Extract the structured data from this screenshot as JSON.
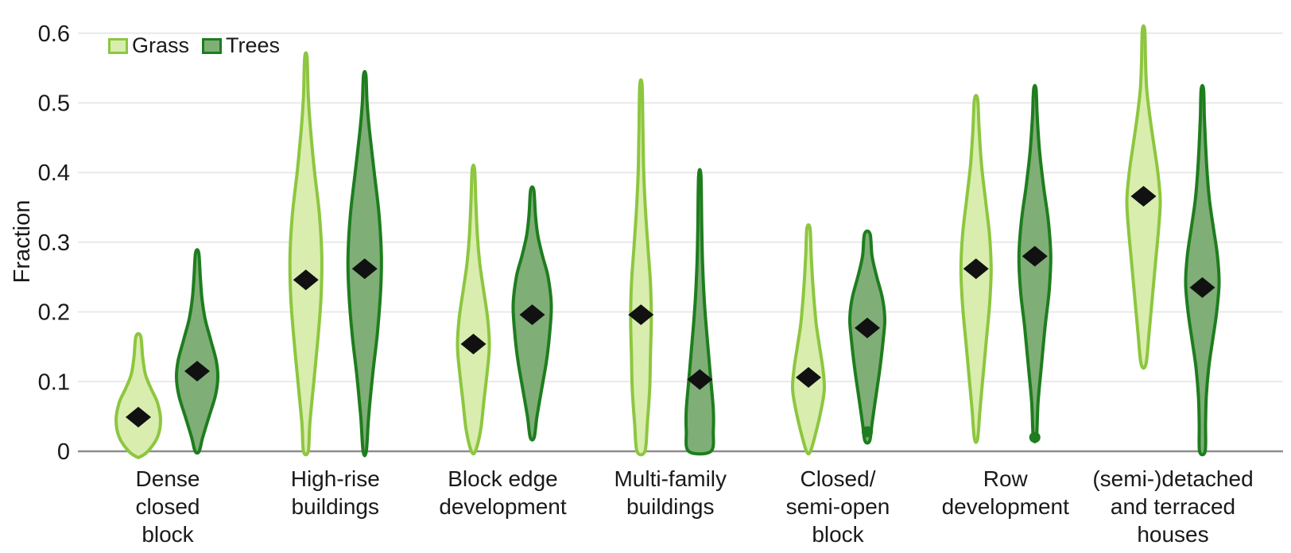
{
  "chart_data": {
    "type": "violin",
    "title": "",
    "ylabel": "Fraction",
    "xlabel": "",
    "ylim": [
      0,
      0.62
    ],
    "yticks": [
      0,
      0.1,
      0.2,
      0.3,
      0.4,
      0.5,
      0.6
    ],
    "ytick_labels": [
      "0",
      "0.1",
      "0.2",
      "0.3",
      "0.4",
      "0.5",
      "0.6"
    ],
    "grid": true,
    "legend_position": "top-left",
    "grid_color": "#e9e9e9",
    "axis_color": "#8c8c8c",
    "text_color": "#1a1a1a",
    "marker": {
      "shape": "diamond",
      "color": "#111111"
    },
    "categories": [
      "Dense\nclosed\nblock",
      "High-rise\nbuildings",
      "Block edge\ndevelopment",
      "Multi-family\nbuildings",
      "Closed/\nsemi-open\nblock",
      "Row\ndevelopment",
      "(semi-)detached\nand terraced\nhouses"
    ],
    "series": [
      {
        "name": "Grass",
        "color_fill": "#d9edae",
        "color_stroke": "#8dc63f",
        "violins": [
          {
            "min": 0,
            "max": 0.165,
            "median": 0.049,
            "outlier": null,
            "profile": [
              [
                -0.008,
                2
              ],
              [
                0,
                12
              ],
              [
                0.02,
                24
              ],
              [
                0.045,
                28
              ],
              [
                0.07,
                24
              ],
              [
                0.09,
                16
              ],
              [
                0.11,
                9
              ],
              [
                0.135,
                5.5
              ],
              [
                0.165,
                3
              ]
            ]
          },
          {
            "min": 0,
            "max": 0.565,
            "median": 0.246,
            "outlier": null,
            "profile": [
              [
                0,
                3
              ],
              [
                0.04,
                5
              ],
              [
                0.1,
                10
              ],
              [
                0.16,
                15
              ],
              [
                0.22,
                19
              ],
              [
                0.28,
                20
              ],
              [
                0.34,
                17
              ],
              [
                0.4,
                11
              ],
              [
                0.46,
                6
              ],
              [
                0.51,
                3
              ],
              [
                0.565,
                1.5
              ]
            ]
          },
          {
            "min": 0,
            "max": 0.405,
            "median": 0.154,
            "outlier": null,
            "profile": [
              [
                0,
                2.5
              ],
              [
                0.03,
                9
              ],
              [
                0.07,
                13
              ],
              [
                0.11,
                17
              ],
              [
                0.15,
                20
              ],
              [
                0.19,
                18
              ],
              [
                0.23,
                13
              ],
              [
                0.27,
                8
              ],
              [
                0.31,
                5
              ],
              [
                0.36,
                3
              ],
              [
                0.405,
                1.5
              ]
            ]
          },
          {
            "min": 0,
            "max": 0.525,
            "median": 0.196,
            "outlier": null,
            "profile": [
              [
                0,
                5
              ],
              [
                0.04,
                8
              ],
              [
                0.09,
                11
              ],
              [
                0.14,
                12
              ],
              [
                0.19,
                13
              ],
              [
                0.24,
                12
              ],
              [
                0.29,
                9
              ],
              [
                0.34,
                6
              ],
              [
                0.4,
                3.5
              ],
              [
                0.46,
                2.5
              ],
              [
                0.525,
                1.5
              ]
            ]
          },
          {
            "min": 0,
            "max": 0.32,
            "median": 0.106,
            "outlier": null,
            "profile": [
              [
                0,
                2.5
              ],
              [
                0.03,
                10
              ],
              [
                0.06,
                16
              ],
              [
                0.09,
                20
              ],
              [
                0.12,
                18
              ],
              [
                0.15,
                14
              ],
              [
                0.18,
                10
              ],
              [
                0.21,
                7.5
              ],
              [
                0.24,
                5.5
              ],
              [
                0.28,
                3.5
              ],
              [
                0.32,
                2
              ]
            ]
          },
          {
            "min": 0.018,
            "max": 0.505,
            "median": 0.262,
            "outlier": null,
            "profile": [
              [
                0.018,
                2
              ],
              [
                0.06,
                5
              ],
              [
                0.11,
                9
              ],
              [
                0.16,
                13
              ],
              [
                0.21,
                17
              ],
              [
                0.26,
                19
              ],
              [
                0.31,
                17
              ],
              [
                0.36,
                12
              ],
              [
                0.41,
                7
              ],
              [
                0.46,
                4
              ],
              [
                0.505,
                2
              ]
            ]
          },
          {
            "min": 0.125,
            "max": 0.605,
            "median": 0.366,
            "outlier": null,
            "profile": [
              [
                0.125,
                3
              ],
              [
                0.17,
                7
              ],
              [
                0.22,
                11
              ],
              [
                0.27,
                15
              ],
              [
                0.32,
                19
              ],
              [
                0.36,
                21
              ],
              [
                0.4,
                18
              ],
              [
                0.44,
                13
              ],
              [
                0.48,
                8
              ],
              [
                0.52,
                4
              ],
              [
                0.56,
                2.5
              ],
              [
                0.605,
                1.5
              ]
            ]
          }
        ]
      },
      {
        "name": "Trees",
        "color_fill": "#7fae77",
        "color_stroke": "#1e7d1e",
        "violins": [
          {
            "min": 0,
            "max": 0.285,
            "median": 0.115,
            "outlier": null,
            "profile": [
              [
                0,
                2.5
              ],
              [
                0.02,
                7
              ],
              [
                0.05,
                15
              ],
              [
                0.08,
                23
              ],
              [
                0.105,
                26
              ],
              [
                0.13,
                24
              ],
              [
                0.16,
                17
              ],
              [
                0.19,
                10
              ],
              [
                0.22,
                6
              ],
              [
                0.25,
                4
              ],
              [
                0.285,
                2
              ]
            ]
          },
          {
            "min": 0,
            "max": 0.54,
            "median": 0.262,
            "outlier": null,
            "profile": [
              [
                0,
                2
              ],
              [
                0.05,
                5
              ],
              [
                0.11,
                10
              ],
              [
                0.17,
                16
              ],
              [
                0.23,
                20
              ],
              [
                0.28,
                21
              ],
              [
                0.34,
                18
              ],
              [
                0.4,
                12
              ],
              [
                0.46,
                6
              ],
              [
                0.5,
                3
              ],
              [
                0.54,
                1.5
              ]
            ]
          },
          {
            "min": 0.02,
            "max": 0.375,
            "median": 0.196,
            "outlier": null,
            "profile": [
              [
                0.02,
                2.5
              ],
              [
                0.05,
                6
              ],
              [
                0.09,
                12
              ],
              [
                0.13,
                18
              ],
              [
                0.17,
                22
              ],
              [
                0.21,
                24
              ],
              [
                0.25,
                20
              ],
              [
                0.28,
                13
              ],
              [
                0.31,
                7
              ],
              [
                0.34,
                4
              ],
              [
                0.375,
                2
              ]
            ]
          },
          {
            "min": 0,
            "max": 0.395,
            "median": 0.103,
            "outlier": null,
            "profile": [
              [
                0,
                14
              ],
              [
                0.03,
                17
              ],
              [
                0.06,
                17
              ],
              [
                0.1,
                14
              ],
              [
                0.14,
                11
              ],
              [
                0.18,
                8
              ],
              [
                0.22,
                5.5
              ],
              [
                0.27,
                3.5
              ],
              [
                0.32,
                2.5
              ],
              [
                0.395,
                1.5
              ]
            ]
          },
          {
            "min": 0.015,
            "max": 0.312,
            "median": 0.177,
            "outlier": 0.028,
            "profile": [
              [
                0.015,
                3
              ],
              [
                0.04,
                6
              ],
              [
                0.08,
                11
              ],
              [
                0.12,
                16
              ],
              [
                0.16,
                20
              ],
              [
                0.19,
                22
              ],
              [
                0.22,
                19
              ],
              [
                0.25,
                12
              ],
              [
                0.28,
                6
              ],
              [
                0.312,
                3.5
              ]
            ]
          },
          {
            "min": 0.02,
            "max": 0.52,
            "median": 0.28,
            "outlier": 0.02,
            "profile": [
              [
                0.02,
                2
              ],
              [
                0.07,
                4
              ],
              [
                0.12,
                8
              ],
              [
                0.18,
                13
              ],
              [
                0.23,
                18
              ],
              [
                0.28,
                20
              ],
              [
                0.33,
                17
              ],
              [
                0.38,
                11
              ],
              [
                0.43,
                6
              ],
              [
                0.48,
                3
              ],
              [
                0.52,
                1.5
              ]
            ]
          },
          {
            "min": 0,
            "max": 0.52,
            "median": 0.235,
            "outlier": null,
            "profile": [
              [
                0,
                3.5
              ],
              [
                0.04,
                4
              ],
              [
                0.08,
                5
              ],
              [
                0.12,
                8
              ],
              [
                0.16,
                13
              ],
              [
                0.2,
                18
              ],
              [
                0.24,
                21
              ],
              [
                0.28,
                19
              ],
              [
                0.32,
                14
              ],
              [
                0.36,
                9
              ],
              [
                0.4,
                6
              ],
              [
                0.44,
                4
              ],
              [
                0.48,
                2.5
              ],
              [
                0.52,
                1.5
              ]
            ]
          }
        ]
      }
    ]
  }
}
